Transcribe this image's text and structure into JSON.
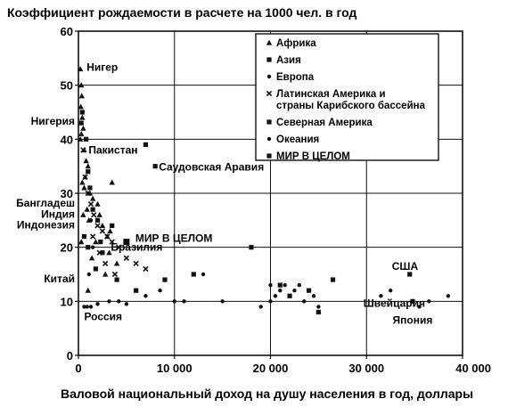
{
  "chart_data": {
    "type": "scatter",
    "title": "Коэффициент рождаемости в расчете на 1000 чел. в год",
    "xlabel": "Валовой национальный доход на душу населения в год, доллары",
    "ylabel": "",
    "xlim": [
      0,
      40000
    ],
    "ylim": [
      0,
      60
    ],
    "x_ticks": [
      {
        "v": 0,
        "label": "0"
      },
      {
        "v": 10000,
        "label": "10 000"
      },
      {
        "v": 20000,
        "label": "20 000"
      },
      {
        "v": 30000,
        "label": "30 000"
      },
      {
        "v": 40000,
        "label": "40 000"
      }
    ],
    "y_ticks": [
      {
        "v": 0,
        "label": "0"
      },
      {
        "v": 10,
        "label": "10"
      },
      {
        "v": 20,
        "label": "20"
      },
      {
        "v": 30,
        "label": "30"
      },
      {
        "v": 40,
        "label": "40"
      },
      {
        "v": 50,
        "label": "50"
      },
      {
        "v": 60,
        "label": "60"
      }
    ],
    "grid": true,
    "legend_position": "top-right",
    "series": [
      {
        "name": "Африка",
        "marker": "triangle",
        "points": [
          [
            200,
            53
          ],
          [
            300,
            50
          ],
          [
            350,
            48
          ],
          [
            250,
            46
          ],
          [
            400,
            44
          ],
          [
            500,
            42
          ],
          [
            300,
            41
          ],
          [
            200,
            40
          ],
          [
            600,
            38
          ],
          [
            800,
            36
          ],
          [
            1000,
            35
          ],
          [
            700,
            33
          ],
          [
            400,
            32
          ],
          [
            1200,
            30
          ],
          [
            1500,
            29
          ],
          [
            2000,
            28
          ],
          [
            900,
            27
          ],
          [
            500,
            26
          ],
          [
            1100,
            25
          ],
          [
            2500,
            24
          ],
          [
            3000,
            22
          ],
          [
            1800,
            21
          ],
          [
            3200,
            19
          ],
          [
            1400,
            18
          ],
          [
            4000,
            17
          ],
          [
            3500,
            32
          ],
          [
            600,
            31
          ],
          [
            2200,
            26
          ],
          [
            300,
            21
          ],
          [
            2800,
            15
          ],
          [
            1000,
            12
          ],
          [
            3300,
            23
          ]
        ]
      },
      {
        "name": "Азия",
        "marker": "square",
        "points": [
          [
            7000,
            39
          ],
          [
            8000,
            35
          ],
          [
            400,
            45
          ],
          [
            300,
            43
          ],
          [
            800,
            40
          ],
          [
            1000,
            34
          ],
          [
            1200,
            31
          ],
          [
            1500,
            27
          ],
          [
            2000,
            25
          ],
          [
            600,
            22
          ],
          [
            1000,
            20
          ],
          [
            2500,
            19
          ],
          [
            1800,
            16
          ],
          [
            4000,
            14
          ],
          [
            6000,
            12
          ],
          [
            9000,
            14
          ],
          [
            12000,
            15
          ],
          [
            18000,
            20
          ],
          [
            22000,
            11
          ],
          [
            24000,
            12
          ],
          [
            25000,
            8
          ],
          [
            34500,
            15
          ],
          [
            34800,
            10
          ],
          [
            3500,
            24
          ],
          [
            2300,
            21
          ]
        ]
      },
      {
        "name": "Европа",
        "marker": "dot",
        "points": [
          [
            600,
            9
          ],
          [
            900,
            9
          ],
          [
            1300,
            9
          ],
          [
            2000,
            9.5
          ],
          [
            3200,
            10
          ],
          [
            4200,
            10
          ],
          [
            5000,
            9.5
          ],
          [
            7000,
            11
          ],
          [
            8500,
            12
          ],
          [
            10000,
            10
          ],
          [
            11000,
            10
          ],
          [
            15000,
            10
          ],
          [
            20000,
            10
          ],
          [
            20500,
            11
          ],
          [
            21000,
            12
          ],
          [
            22500,
            12
          ],
          [
            23500,
            10
          ],
          [
            24500,
            11
          ],
          [
            25000,
            9
          ],
          [
            19000,
            9
          ],
          [
            31500,
            11
          ],
          [
            32500,
            12
          ],
          [
            35500,
            9
          ],
          [
            36500,
            10
          ],
          [
            38500,
            11
          ],
          [
            21500,
            13
          ],
          [
            23000,
            13
          ]
        ]
      },
      {
        "name": "Латинская Америка и страны Карибского бассейна",
        "marker": "cross",
        "points": [
          [
            500,
            38
          ],
          [
            700,
            33
          ],
          [
            1000,
            30
          ],
          [
            1300,
            28
          ],
          [
            1600,
            26
          ],
          [
            2000,
            24
          ],
          [
            2500,
            23
          ],
          [
            3000,
            22
          ],
          [
            3500,
            21
          ],
          [
            4200,
            20
          ],
          [
            5000,
            18
          ],
          [
            6000,
            17
          ],
          [
            2800,
            17
          ],
          [
            2200,
            19
          ],
          [
            1500,
            22
          ],
          [
            3800,
            15
          ],
          [
            7000,
            16
          ]
        ]
      },
      {
        "name": "Северная Америка",
        "marker": "square",
        "points": [
          [
            21000,
            13
          ],
          [
            26500,
            14
          ]
        ]
      },
      {
        "name": "Океания",
        "marker": "dot",
        "points": [
          [
            1000,
            30
          ],
          [
            1300,
            25
          ],
          [
            1500,
            20
          ],
          [
            1100,
            15
          ],
          [
            13000,
            15
          ],
          [
            20000,
            13
          ]
        ]
      },
      {
        "name": "МИР В ЦЕЛОМ",
        "marker": "square-large",
        "points": [
          [
            5000,
            21
          ]
        ]
      }
    ],
    "annotations": [
      {
        "text": "Нигер",
        "x": 300,
        "y": 53
      },
      {
        "text": "Нигерия",
        "x": 0,
        "y": 43
      },
      {
        "text": "Пакистан",
        "x": 500,
        "y": 38
      },
      {
        "text": "Саудовская Аравия",
        "x": 8000,
        "y": 35
      },
      {
        "text": "Бангладеш",
        "x": 0,
        "y": 28
      },
      {
        "text": "Индия",
        "x": 0,
        "y": 26
      },
      {
        "text": "Индонезия",
        "x": 0,
        "y": 24
      },
      {
        "text": "МИР В ЦЕЛОМ",
        "x": 5000,
        "y": 21
      },
      {
        "text": "Бразилия",
        "x": 3000,
        "y": 20
      },
      {
        "text": "Китай",
        "x": 0,
        "y": 14
      },
      {
        "text": "Россия",
        "x": 600,
        "y": 7
      },
      {
        "text": "США",
        "x": 34500,
        "y": 15
      },
      {
        "text": "Швейцария",
        "x": 34500,
        "y": 10
      },
      {
        "text": "Япония",
        "x": 35500,
        "y": 7
      }
    ]
  }
}
